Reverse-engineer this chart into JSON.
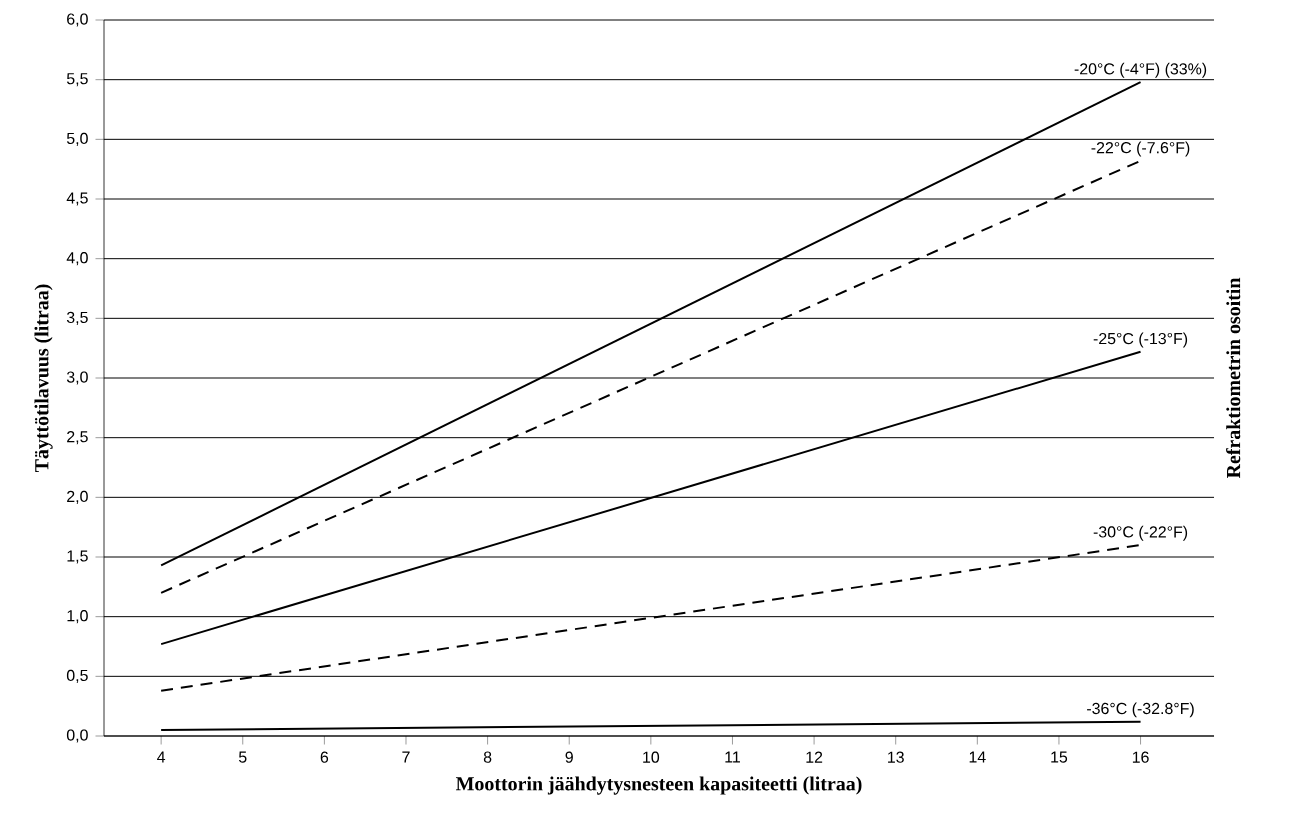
{
  "chart_data": {
    "type": "line",
    "xlabel": "Moottorin jäähdytysnesteen kapasiteetti (litraa)",
    "ylabel": "Täyttötilavuus (litraa)",
    "y2label": "Refraktiometrin osoitin",
    "x": [
      4,
      16
    ],
    "series": [
      {
        "name": "-20°C (-4°F) (33%)",
        "color": "#000000",
        "line_style": "solid",
        "values": [
          1.43,
          5.48
        ]
      },
      {
        "name": "-22°C (-7.6°F)",
        "color": "#000000",
        "line_style": "dashed",
        "values": [
          1.2,
          4.82
        ]
      },
      {
        "name": "-25°C (-13°F)",
        "color": "#000000",
        "line_style": "solid",
        "values": [
          0.77,
          3.22
        ]
      },
      {
        "name": "-30°C (-22°F)",
        "color": "#000000",
        "line_style": "dashed",
        "values": [
          0.38,
          1.6
        ]
      },
      {
        "name": "-36°C (-32.8°F)",
        "color": "#000000",
        "line_style": "solid",
        "values": [
          0.05,
          0.12
        ]
      }
    ],
    "xlim": [
      3.3,
      16.9
    ],
    "xticks": [
      4,
      5,
      6,
      7,
      8,
      9,
      10,
      11,
      12,
      13,
      14,
      15,
      16
    ],
    "ylim": [
      0,
      6
    ],
    "yticks": [
      {
        "value": 0,
        "label": "0,0"
      },
      {
        "value": 0.5,
        "label": "0,5"
      },
      {
        "value": 1,
        "label": "1,0"
      },
      {
        "value": 1.5,
        "label": "1,5"
      },
      {
        "value": 2,
        "label": "2,0"
      },
      {
        "value": 2.5,
        "label": "2,5"
      },
      {
        "value": 3,
        "label": "3,0"
      },
      {
        "value": 3.5,
        "label": "3,5"
      },
      {
        "value": 4,
        "label": "4,0"
      },
      {
        "value": 4.5,
        "label": "4,5"
      },
      {
        "value": 5,
        "label": "5,0"
      },
      {
        "value": 5.5,
        "label": "5,5"
      },
      {
        "value": 6,
        "label": "6,0"
      }
    ],
    "grid": "y",
    "marker": "none"
  }
}
